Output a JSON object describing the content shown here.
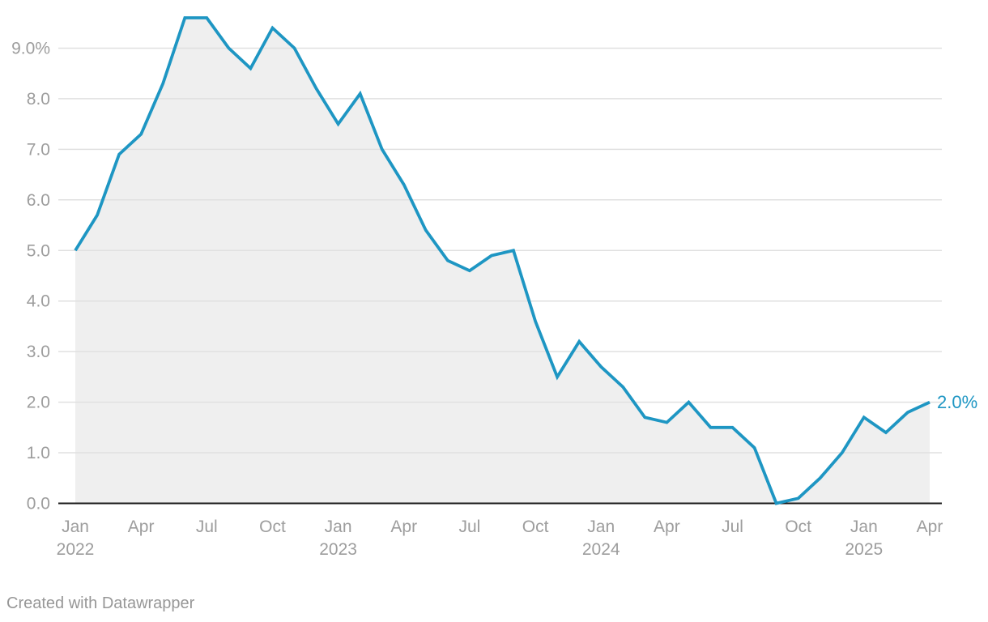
{
  "chart_data": {
    "type": "area",
    "title": "",
    "xlabel": "",
    "ylabel": "",
    "unit": "%",
    "x": [
      "Jan 2022",
      "Feb 2022",
      "Mar 2022",
      "Apr 2022",
      "May 2022",
      "Jun 2022",
      "Jul 2022",
      "Aug 2022",
      "Sep 2022",
      "Oct 2022",
      "Nov 2022",
      "Dec 2022",
      "Jan 2023",
      "Feb 2023",
      "Mar 2023",
      "Apr 2023",
      "May 2023",
      "Jun 2023",
      "Jul 2023",
      "Aug 2023",
      "Sep 2023",
      "Oct 2023",
      "Nov 2023",
      "Dec 2023",
      "Jan 2024",
      "Feb 2024",
      "Mar 2024",
      "Apr 2024",
      "May 2024",
      "Jun 2024",
      "Jul 2024",
      "Aug 2024",
      "Sep 2024",
      "Oct 2024",
      "Nov 2024",
      "Dec 2024",
      "Jan 2025",
      "Feb 2025",
      "Mar 2025",
      "Apr 2025"
    ],
    "values": [
      5.0,
      5.7,
      6.9,
      7.3,
      8.3,
      9.6,
      9.6,
      9.0,
      8.6,
      9.4,
      9.0,
      8.2,
      7.5,
      8.1,
      7.0,
      6.3,
      5.4,
      4.8,
      4.6,
      4.9,
      5.0,
      3.6,
      2.5,
      3.2,
      2.7,
      2.3,
      1.7,
      1.6,
      2.0,
      1.5,
      1.5,
      1.1,
      0.0,
      0.1,
      0.5,
      1.0,
      1.7,
      1.4,
      1.8,
      2.0
    ],
    "ylim": [
      0,
      9.8
    ],
    "grid": "horizontal",
    "legend": "none",
    "y_ticks": [
      {
        "value": 0,
        "label": "0.0"
      },
      {
        "value": 1,
        "label": "1.0"
      },
      {
        "value": 2,
        "label": "2.0"
      },
      {
        "value": 3,
        "label": "3.0"
      },
      {
        "value": 4,
        "label": "4.0"
      },
      {
        "value": 5,
        "label": "5.0"
      },
      {
        "value": 6,
        "label": "6.0"
      },
      {
        "value": 7,
        "label": "7.0"
      },
      {
        "value": 8,
        "label": "8.0"
      },
      {
        "value": 9,
        "label": "9.0%"
      }
    ],
    "x_ticks": [
      {
        "index": 0,
        "label": "Jan",
        "year": "2022"
      },
      {
        "index": 3,
        "label": "Apr"
      },
      {
        "index": 6,
        "label": "Jul"
      },
      {
        "index": 9,
        "label": "Oct"
      },
      {
        "index": 12,
        "label": "Jan",
        "year": "2023"
      },
      {
        "index": 15,
        "label": "Apr"
      },
      {
        "index": 18,
        "label": "Jul"
      },
      {
        "index": 21,
        "label": "Oct"
      },
      {
        "index": 24,
        "label": "Jan",
        "year": "2024"
      },
      {
        "index": 27,
        "label": "Apr"
      },
      {
        "index": 30,
        "label": "Jul"
      },
      {
        "index": 33,
        "label": "Oct"
      },
      {
        "index": 36,
        "label": "Jan",
        "year": "2025"
      },
      {
        "index": 39,
        "label": "Apr"
      }
    ],
    "end_label": "2.0%",
    "colors": {
      "line": "#1e96c3",
      "area": "#efefef",
      "grid": "#e0e0e0",
      "axis": "#1a1a1a",
      "tick_text": "#9d9d9d"
    }
  },
  "footer": {
    "credit": "Created with Datawrapper"
  }
}
